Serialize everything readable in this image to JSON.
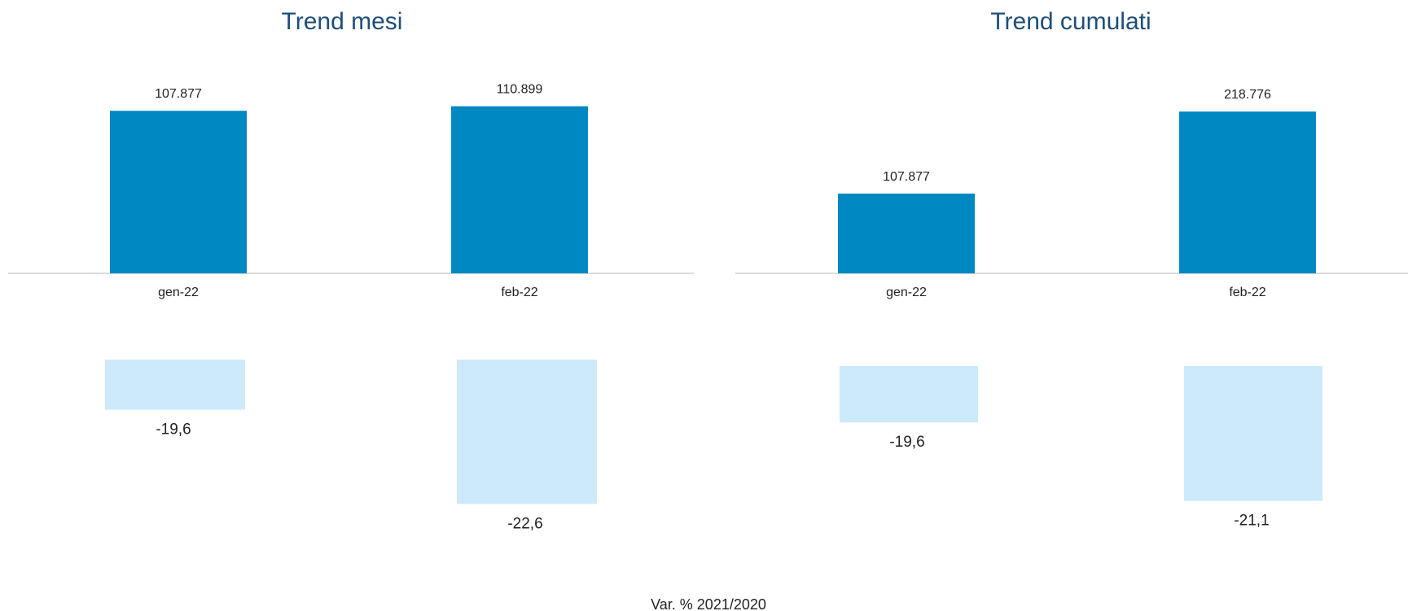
{
  "chart_data": [
    {
      "type": "bar",
      "title": "Trend mesi",
      "categories": [
        "gen-22",
        "feb-22"
      ],
      "values": [
        107877,
        110899
      ],
      "value_labels": [
        "107.877",
        "110.899"
      ],
      "var_values": [
        -19.6,
        -22.6
      ],
      "var_labels": [
        "-19,6",
        "-22,6"
      ],
      "bar_color": "#0088c2",
      "var_color": "#cceafa",
      "axis_color": "#d0d0d0",
      "ylim": [
        0,
        115000
      ]
    },
    {
      "type": "bar",
      "title": "Trend cumulati",
      "categories": [
        "gen-22",
        "feb-22"
      ],
      "values": [
        107877,
        218776
      ],
      "value_labels": [
        "107.877",
        "218.776"
      ],
      "var_values": [
        -19.6,
        -21.1
      ],
      "var_labels": [
        "-19,6",
        "-21,1"
      ],
      "bar_color": "#0088c2",
      "var_color": "#cceafa",
      "axis_color": "#d0d0d0",
      "ylim": [
        0,
        220000
      ]
    }
  ],
  "footer": "Var. %  2021/2020"
}
